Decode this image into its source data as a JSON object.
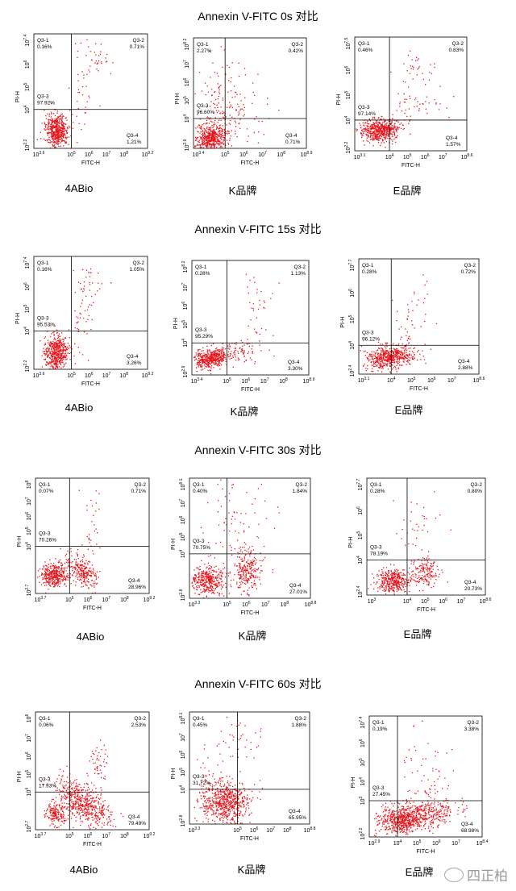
{
  "sections": [
    {
      "title": "Annexin V-FITC  0s 对比",
      "plots": [
        {
          "brand": "4ABio",
          "xlabel": "FITC-H",
          "ylabel": "PI-H",
          "xticks": [
            "10^3.6",
            "10^5",
            "10^6",
            "10^7",
            "10^8",
            "10^9.2"
          ],
          "yticks": [
            "10^2.2",
            "10^4",
            "10^5",
            "10^6",
            "10^7.4"
          ],
          "quadrants": {
            "Q3-1": "0.16%",
            "Q3-2": "0.71%",
            "Q3-3": "97.92%",
            "Q3-4": "1.21%"
          }
        },
        {
          "brand": "K品牌",
          "xlabel": "FITC-H",
          "ylabel": "PI-H",
          "xticks": [
            "10^3.4",
            "10^5",
            "10^6",
            "10^7",
            "10^8",
            "10^8.9"
          ],
          "yticks": [
            "10^2.9",
            "10^4",
            "10^5",
            "10^6",
            "10^7",
            "10^8.2"
          ],
          "quadrants": {
            "Q3-1": "2.27%",
            "Q3-2": "0.42%",
            "Q3-3": "96.60%",
            "Q3-4": "0.71%"
          }
        },
        {
          "brand": "E品牌",
          "xlabel": "FITC-H",
          "ylabel": "PI-H",
          "xticks": [
            "10^3.1",
            "10^4",
            "10^5",
            "10^6",
            "10^7",
            "10^8.6"
          ],
          "yticks": [
            "10^2.2",
            "10^4",
            "10^5",
            "10^6",
            "10^7.5"
          ],
          "quadrants": {
            "Q3-1": "0.46%",
            "Q3-2": "0.83%",
            "Q3-3": "97.14%",
            "Q3-4": "1.57%"
          }
        }
      ]
    },
    {
      "title": "Annexin V-FITC 15s 对比",
      "plots": [
        {
          "brand": "4ABio",
          "xlabel": "FITC-H",
          "ylabel": "PI-H",
          "xticks": [
            "10^3.6",
            "10^5",
            "10^6",
            "10^7",
            "10^8",
            "10^9.2"
          ],
          "yticks": [
            "10^2.2",
            "10^4",
            "10^5",
            "10^6",
            "10^7.4"
          ],
          "quadrants": {
            "Q3-1": "0.16%",
            "Q3-2": "1.05%",
            "Q3-3": "95.53%",
            "Q3-4": "3.26%"
          }
        },
        {
          "brand": "K品牌",
          "xlabel": "FITC-H",
          "ylabel": "PI-H",
          "xticks": [
            "10^3.4",
            "10^5",
            "10^6",
            "10^7",
            "10^8",
            "10^8.9"
          ],
          "yticks": [
            "10^2.9",
            "10^4",
            "10^5",
            "10^6",
            "10^7",
            "10^8.2"
          ],
          "quadrants": {
            "Q3-1": "0.28%",
            "Q3-2": "1.13%",
            "Q3-3": "95.29%",
            "Q3-4": "3.30%"
          }
        },
        {
          "brand": "E品牌",
          "xlabel": "FITC-H",
          "ylabel": "PI-H",
          "xticks": [
            "10^3.1",
            "10^4",
            "10^5",
            "10^6",
            "10^7",
            "10^8.6"
          ],
          "yticks": [
            "10^2.4",
            "10^4",
            "10^5",
            "10^6",
            "10^7.7"
          ],
          "quadrants": {
            "Q3-1": "0.28%",
            "Q3-2": "0.72%",
            "Q3-3": "96.12%",
            "Q3-4": "2.88%"
          }
        }
      ]
    },
    {
      "title": "Annexin V-FITC 30s 对比",
      "plots": [
        {
          "brand": "4ABio",
          "xlabel": "FITC-H",
          "ylabel": "PI-H",
          "xticks": [
            "10^3.7",
            "10^5",
            "10^6",
            "10^7",
            "10^8",
            "10^9.2"
          ],
          "yticks": [
            "10^2.7",
            "10^4",
            "10^5",
            "10^6",
            "10^7",
            "10^8"
          ],
          "quadrants": {
            "Q3-1": "0.07%",
            "Q3-2": "0.71%",
            "Q3-3": "70.26%",
            "Q3-4": "28.96%"
          }
        },
        {
          "brand": "K品牌",
          "xlabel": "FITC-H",
          "ylabel": "PI-H",
          "xticks": [
            "10^3.3",
            "10^5",
            "10^6",
            "10^7",
            "10^8",
            "10^8.8"
          ],
          "yticks": [
            "10^2.8",
            "10^4",
            "10^5",
            "10^6",
            "10^7",
            "10^8.1"
          ],
          "quadrants": {
            "Q3-1": "0.40%",
            "Q3-2": "1.84%",
            "Q3-3": "70.75%",
            "Q3-4": "27.01%"
          }
        },
        {
          "brand": "E品牌",
          "xlabel": "FITC-H",
          "ylabel": "PI-H",
          "xticks": [
            "10^3",
            "10^4",
            "10^5",
            "10^6",
            "10^7",
            "10^8.6"
          ],
          "yticks": [
            "10^2.4",
            "10^4",
            "10^5",
            "10^6",
            "10^7.7"
          ],
          "quadrants": {
            "Q3-1": "0.28%",
            "Q3-2": "0.80%",
            "Q3-3": "78.19%",
            "Q3-4": "20.73%"
          }
        }
      ]
    },
    {
      "title": "Annexin V-FITC 60s 对比",
      "plots": [
        {
          "brand": "4ABio",
          "xlabel": "FITC-H",
          "ylabel": "PI-H",
          "xticks": [
            "10^3.7",
            "10^5",
            "10^6",
            "10^7",
            "10^8",
            "10^9.2"
          ],
          "yticks": [
            "10^2.7",
            "10^4",
            "10^5",
            "10^6",
            "10^7",
            "10^8"
          ],
          "quadrants": {
            "Q3-1": "0.06%",
            "Q3-2": "2.53%",
            "Q3-3": "17.93%",
            "Q3-4": "79.49%"
          }
        },
        {
          "brand": "K品牌",
          "xlabel": "FITC-H",
          "ylabel": "PI-H",
          "xticks": [
            "10^3.3",
            "10^5",
            "10^6",
            "10^7",
            "10^8",
            "10^8.8"
          ],
          "yticks": [
            "10^2.8",
            "10^4",
            "10^5",
            "10^6",
            "10^7",
            "10^8.1"
          ],
          "quadrants": {
            "Q3-1": "0.45%",
            "Q3-2": "1.88%",
            "Q3-3": "31.72%",
            "Q3-4": "65.95%"
          }
        },
        {
          "brand": "E品牌",
          "xlabel": "FITC-H",
          "ylabel": "PI-H",
          "xticks": [
            "10^2.9",
            "10^4",
            "10^5",
            "10^6",
            "10^7",
            "10^8.4"
          ],
          "yticks": [
            "10^2.2",
            "10^3",
            "10^4",
            "10^5",
            "10^6",
            "10^7.4"
          ],
          "quadrants": {
            "Q3-1": "0.19%",
            "Q3-2": "3.38%",
            "Q3-3": "27.45%",
            "Q3-4": "68.98%"
          }
        }
      ]
    }
  ],
  "chart_data": [
    {
      "type": "scatter",
      "title": "Annexin V-FITC  0s 对比",
      "xlabel": "FITC-H",
      "ylabel": "PI-H",
      "series": [
        {
          "name": "4ABio",
          "values": {
            "Q3-1": 0.16,
            "Q3-2": 0.71,
            "Q3-3": 97.92,
            "Q3-4": 1.21
          }
        },
        {
          "name": "K品牌",
          "values": {
            "Q3-1": 2.27,
            "Q3-2": 0.42,
            "Q3-3": 96.6,
            "Q3-4": 0.71
          }
        },
        {
          "name": "E品牌",
          "values": {
            "Q3-1": 0.46,
            "Q3-2": 0.83,
            "Q3-3": 97.14,
            "Q3-4": 1.57
          }
        }
      ]
    },
    {
      "type": "scatter",
      "title": "Annexin V-FITC 15s 对比",
      "xlabel": "FITC-H",
      "ylabel": "PI-H",
      "series": [
        {
          "name": "4ABio",
          "values": {
            "Q3-1": 0.16,
            "Q3-2": 1.05,
            "Q3-3": 95.53,
            "Q3-4": 3.26
          }
        },
        {
          "name": "K品牌",
          "values": {
            "Q3-1": 0.28,
            "Q3-2": 1.13,
            "Q3-3": 95.29,
            "Q3-4": 3.3
          }
        },
        {
          "name": "E品牌",
          "values": {
            "Q3-1": 0.28,
            "Q3-2": 0.72,
            "Q3-3": 96.12,
            "Q3-4": 2.88
          }
        }
      ]
    },
    {
      "type": "scatter",
      "title": "Annexin V-FITC 30s 对比",
      "xlabel": "FITC-H",
      "ylabel": "PI-H",
      "series": [
        {
          "name": "4ABio",
          "values": {
            "Q3-1": 0.07,
            "Q3-2": 0.71,
            "Q3-3": 70.26,
            "Q3-4": 28.96
          }
        },
        {
          "name": "K品牌",
          "values": {
            "Q3-1": 0.4,
            "Q3-2": 1.84,
            "Q3-3": 70.75,
            "Q3-4": 27.01
          }
        },
        {
          "name": "E品牌",
          "values": {
            "Q3-1": 0.28,
            "Q3-2": 0.8,
            "Q3-3": 78.19,
            "Q3-4": 20.73
          }
        }
      ]
    },
    {
      "type": "scatter",
      "title": "Annexin V-FITC 60s 对比",
      "xlabel": "FITC-H",
      "ylabel": "PI-H",
      "series": [
        {
          "name": "4ABio",
          "values": {
            "Q3-1": 0.06,
            "Q3-2": 2.53,
            "Q3-3": 17.93,
            "Q3-4": 79.49
          }
        },
        {
          "name": "K品牌",
          "values": {
            "Q3-1": 0.45,
            "Q3-2": 1.88,
            "Q3-3": 31.72,
            "Q3-4": 65.95
          }
        },
        {
          "name": "E品牌",
          "values": {
            "Q3-1": 0.19,
            "Q3-2": 3.38,
            "Q3-3": 27.45,
            "Q3-4": 68.98
          }
        }
      ]
    }
  ],
  "colors": {
    "dots": "#e8141b",
    "axis": "#000000",
    "watermark": "#9a9a9a"
  },
  "watermark": {
    "text": "四正柏",
    "icon": "wechat-icon"
  }
}
